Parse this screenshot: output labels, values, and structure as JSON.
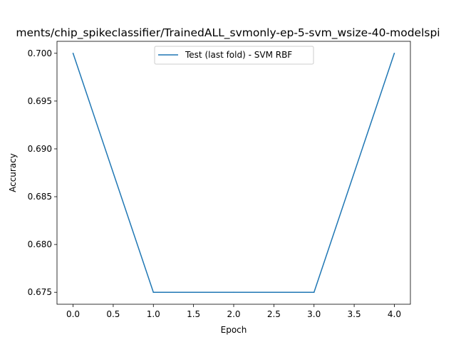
{
  "chart_data": {
    "type": "line",
    "title": "ments/chip_spikeclassifier/TrainedALL_svmonly-ep-5-svm_wsize-40-modelspi",
    "xlabel": "Epoch",
    "ylabel": "Accuracy",
    "xlim": [
      -0.2,
      4.2
    ],
    "ylim": [
      0.67375,
      0.70125
    ],
    "xticks": [
      0.0,
      0.5,
      1.0,
      1.5,
      2.0,
      2.5,
      3.0,
      3.5,
      4.0
    ],
    "xtick_labels": [
      "0.0",
      "0.5",
      "1.0",
      "1.5",
      "2.0",
      "2.5",
      "3.0",
      "3.5",
      "4.0"
    ],
    "yticks": [
      0.675,
      0.68,
      0.685,
      0.69,
      0.695,
      0.7
    ],
    "ytick_labels": [
      "0.675",
      "0.680",
      "0.685",
      "0.690",
      "0.695",
      "0.700"
    ],
    "grid": false,
    "legend_position": "upper center",
    "series": [
      {
        "name": "Test (last fold) - SVM RBF",
        "color": "#1f77b4",
        "x": [
          0,
          1,
          2,
          3,
          4
        ],
        "y": [
          0.7,
          0.675,
          0.675,
          0.675,
          0.7
        ]
      }
    ]
  }
}
